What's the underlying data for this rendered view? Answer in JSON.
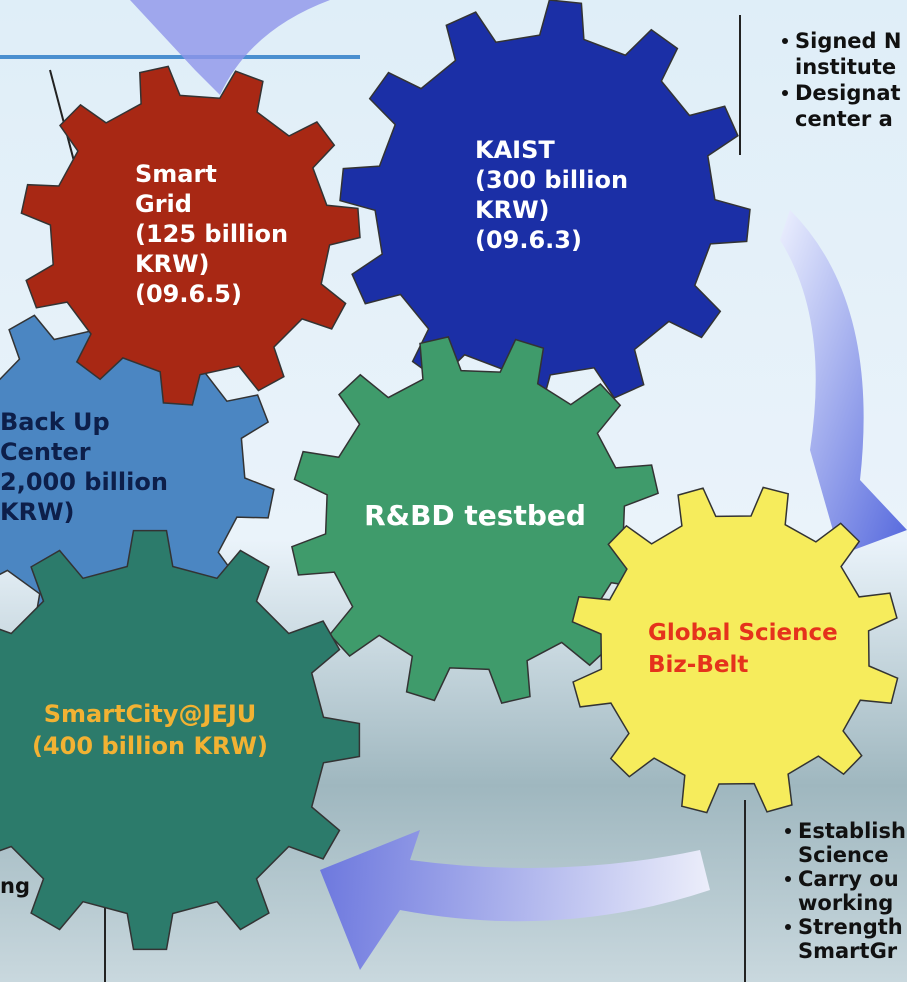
{
  "gears": [
    {
      "lines": [
        "Smart",
        "Grid",
        "(125 billion",
        "KRW)",
        "(09.6.5)"
      ]
    },
    {
      "lines": [
        "KAIST",
        "(300 billion",
        "KRW)",
        "(09.6.3)"
      ]
    },
    {
      "lines": [
        "Back Up",
        "Center",
        "2,000 billion",
        "KRW)"
      ]
    },
    {
      "lines": [
        "R&BD testbed"
      ]
    },
    {
      "lines": [
        "Global Science",
        "Biz-Belt"
      ]
    },
    {
      "lines": [
        "SmartCity@JEJU",
        "(400 billion  KRW)"
      ]
    }
  ],
  "notes": {
    "top_right": [
      "Signed N",
      "institute",
      "Designat",
      "center a"
    ],
    "bottom_right": [
      "Establish",
      "Science",
      "Carry ou",
      "working",
      "Strength",
      "SmartGr"
    ],
    "bottom_left": [
      "ng"
    ]
  }
}
